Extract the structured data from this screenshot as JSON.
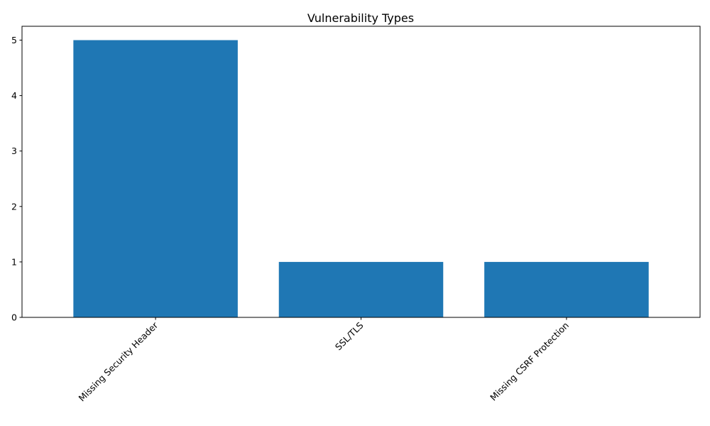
{
  "chart_data": {
    "type": "bar",
    "title": "Vulnerability Types",
    "xlabel": "",
    "ylabel": "",
    "categories": [
      "Missing Security Header",
      "SSL/TLS",
      "Missing CSRF Protection"
    ],
    "values": [
      5,
      1,
      1
    ],
    "ylim": [
      0,
      5.25
    ],
    "yticks": [
      0,
      1,
      2,
      3,
      4,
      5
    ],
    "bar_color": "#1f77b4",
    "grid": false,
    "legend": "none",
    "xtick_rotation": "45 degrees, right-aligned"
  }
}
